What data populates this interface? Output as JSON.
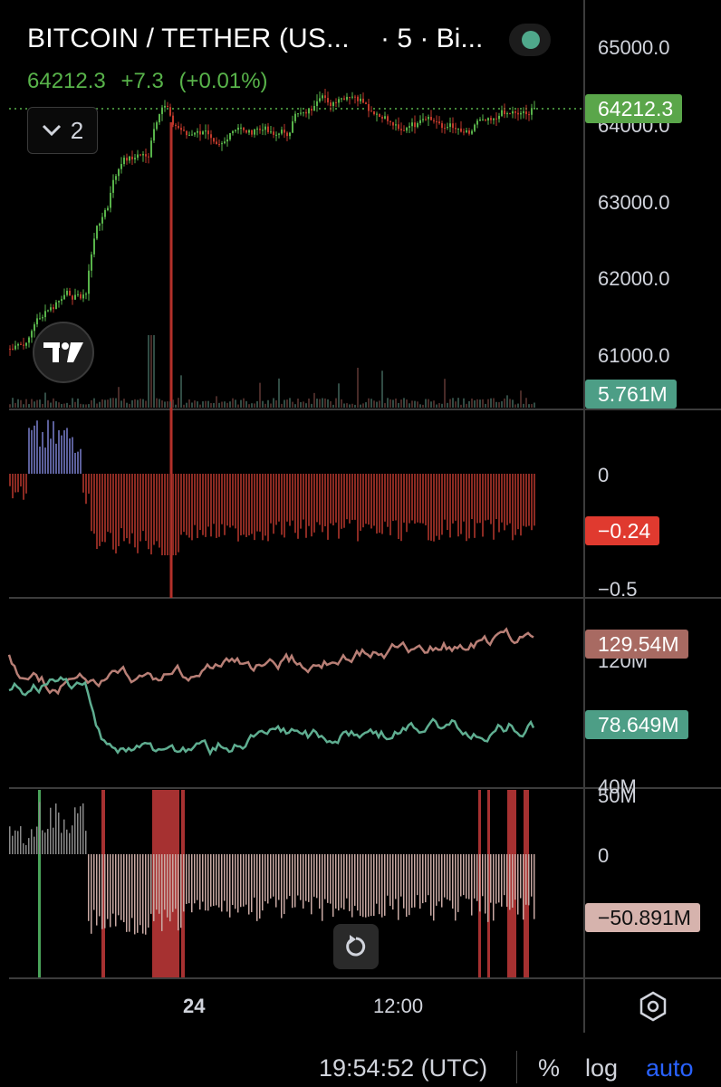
{
  "header": {
    "symbol_title": "BITCOIN / TETHER (US...",
    "interval_text": "· 5 · Bi...",
    "last_price": "64212.3",
    "change": "+7.3",
    "change_pct": "(+0.01%)",
    "indicators_toggle_count": "2"
  },
  "price_scale": {
    "labels": [
      "65000.0",
      "64000.0",
      "63000.0",
      "62000.0",
      "61000.0"
    ],
    "last_price_tag": "64212.3",
    "volume_tag": "5.761M"
  },
  "pane2": {
    "labels": [
      "0",
      "−0.5"
    ],
    "value_tag": "−0.24"
  },
  "pane3": {
    "labels": [
      "120M",
      "40M"
    ],
    "tag_top": "129.54M",
    "tag_bottom": "78.649M"
  },
  "pane4": {
    "labels": [
      "50M",
      "0"
    ],
    "value_tag": "−50.891M"
  },
  "time_axis": {
    "labels": [
      "24",
      "12:00"
    ]
  },
  "bottom_bar": {
    "clock": "19:54:52 (UTC)",
    "percent": "%",
    "log": "log",
    "auto": "auto"
  },
  "colors": {
    "up": "#58b34a",
    "down": "#c0392b",
    "tag_green": "#5aa64a",
    "tag_teal": "#4d9e86",
    "tag_red": "#e03a2f",
    "tag_rose": "#a86a62",
    "tag_pink": "#d6b3ad",
    "auto_blue": "#2962ff"
  },
  "icons": [
    "chevron-down-icon",
    "tradingview-logo-icon",
    "reset-chart-icon",
    "settings-gear-icon"
  ]
}
